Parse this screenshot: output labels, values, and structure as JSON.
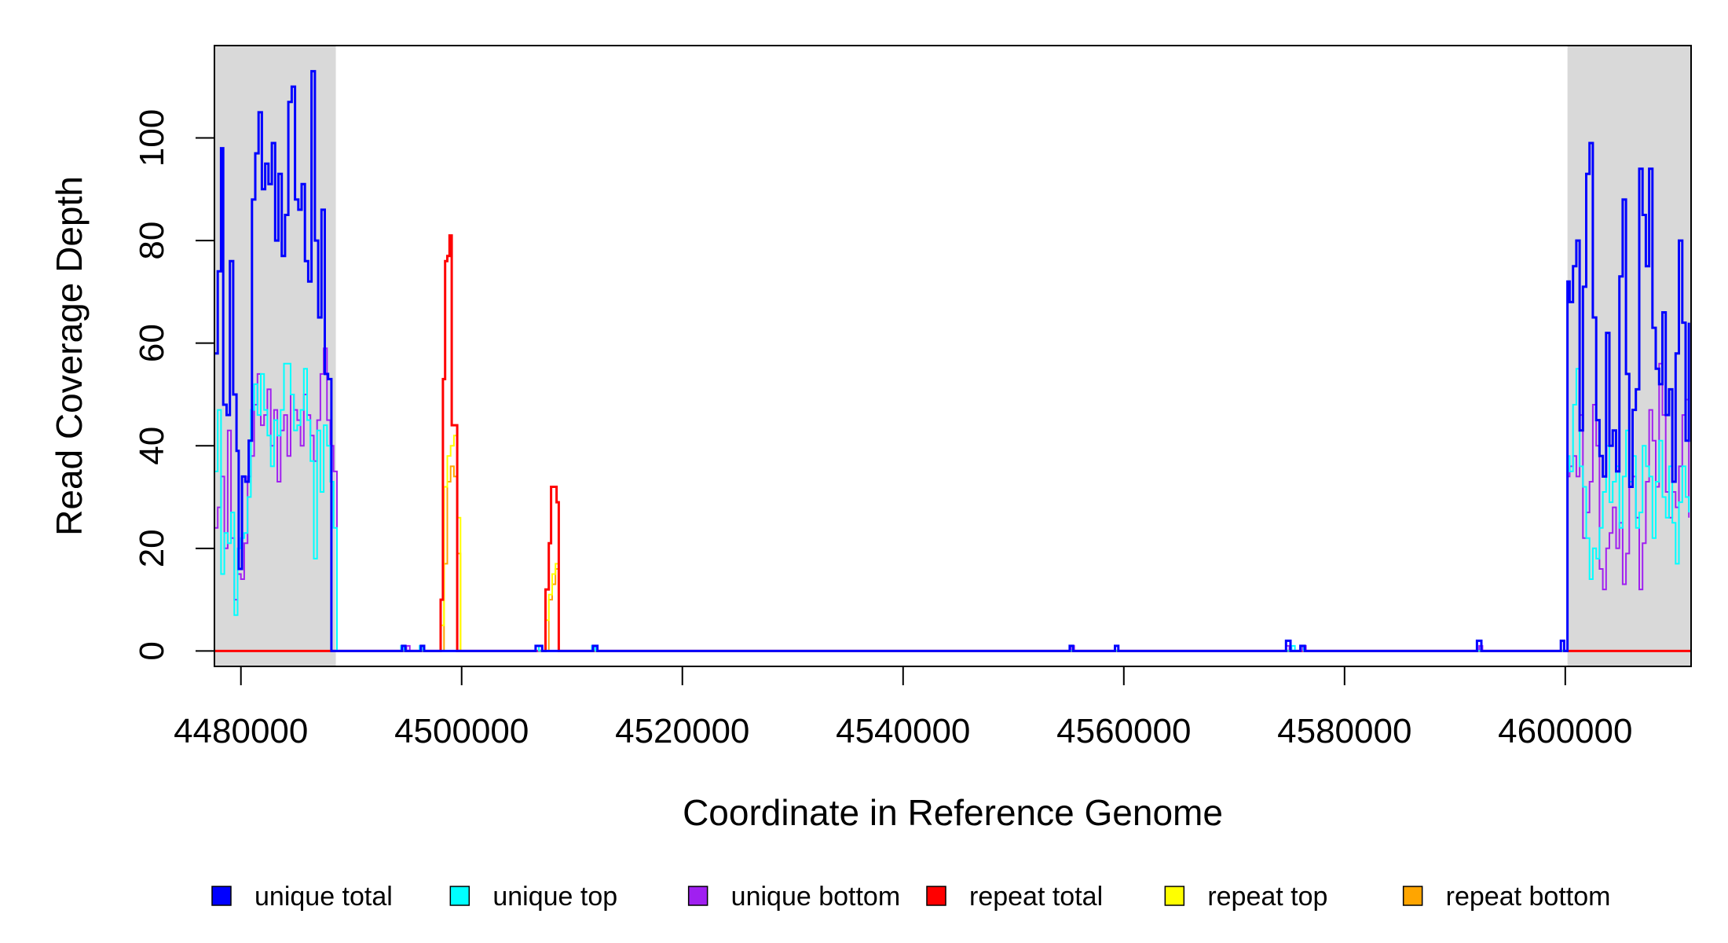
{
  "chart_data": {
    "type": "line",
    "step": true,
    "xlabel": "Coordinate in Reference Genome",
    "ylabel": "Read Coverage Depth",
    "xlim": [
      4477600,
      4611400
    ],
    "ylim": [
      -3,
      118
    ],
    "x_ticks": [
      4480000,
      4500000,
      4520000,
      4540000,
      4560000,
      4580000,
      4600000
    ],
    "x_tick_labels": [
      "4480000",
      "4500000",
      "4520000",
      "4540000",
      "4560000",
      "4580000",
      "4600000"
    ],
    "y_ticks": [
      0,
      20,
      40,
      60,
      80,
      100
    ],
    "y_tick_labels": [
      "0",
      "20",
      "40",
      "60",
      "80",
      "100"
    ],
    "shaded_regions": [
      {
        "from": 4477600,
        "to": 4488600,
        "color": "#d9d9d9"
      },
      {
        "from": 4600200,
        "to": 4611400,
        "color": "#d9d9d9"
      }
    ],
    "legend_position": "bottom",
    "series": [
      {
        "name": "repeat bottom",
        "color": "#ffa500",
        "width": 2,
        "x": [
          4477600,
          4488800,
          4498100,
          4498400,
          4498700,
          4499000,
          4499300,
          4499600,
          4499900,
          4507600,
          4507900,
          4508200,
          4508500,
          4508800,
          4611400
        ],
        "y": [
          0,
          0,
          0,
          17,
          33,
          36,
          34,
          19,
          0,
          0,
          10,
          13,
          16,
          0,
          0
        ]
      },
      {
        "name": "repeat top",
        "color": "#ffff00",
        "width": 2,
        "x": [
          4477600,
          4488800,
          4498100,
          4498400,
          4498700,
          4499000,
          4499300,
          4499600,
          4499900,
          4507600,
          4507900,
          4508200,
          4508500,
          4508800,
          4611400
        ],
        "y": [
          0,
          0,
          5,
          32,
          38,
          40,
          42,
          26,
          0,
          6,
          11,
          15,
          17,
          0,
          0
        ]
      },
      {
        "name": "repeat total",
        "color": "#ff0000",
        "width": 3,
        "x": [
          4477600,
          4488800,
          4498100,
          4498300,
          4498500,
          4498700,
          4498900,
          4499100,
          4499300,
          4499600,
          4507600,
          4507900,
          4508100,
          4508400,
          4508600,
          4508800,
          4611400
        ],
        "y": [
          0,
          0,
          10,
          53,
          76,
          77,
          81,
          44,
          44,
          0,
          12,
          21,
          32,
          32,
          29,
          0,
          0
        ]
      },
      {
        "name": "unique bottom",
        "color": "#a020f0",
        "width": 2,
        "x": [
          4477600,
          4477900,
          4478200,
          4478500,
          4478800,
          4479100,
          4479400,
          4479700,
          4480000,
          4480300,
          4480600,
          4480900,
          4481200,
          4481500,
          4481800,
          4482100,
          4482400,
          4482700,
          4483000,
          4483300,
          4483600,
          4483900,
          4484200,
          4484500,
          4484800,
          4485100,
          4485400,
          4485700,
          4486000,
          4486300,
          4486600,
          4486900,
          4487200,
          4487500,
          4487800,
          4488100,
          4488400,
          4488700,
          4488900,
          4495000,
          4495300,
          4500000,
          4507000,
          4507300,
          4511800,
          4512100,
          4520000,
          4555200,
          4555500,
          4559200,
          4559500,
          4574700,
          4575000,
          4576200,
          4576500,
          4592200,
          4592500,
          4600200,
          4600400,
          4600700,
          4601000,
          4601300,
          4601600,
          4601900,
          4602200,
          4602500,
          4602800,
          4603100,
          4603400,
          4603700,
          4604000,
          4604300,
          4604600,
          4604900,
          4605200,
          4605500,
          4605800,
          4606100,
          4606400,
          4606700,
          4607000,
          4607300,
          4607600,
          4607900,
          4608200,
          4608500,
          4608800,
          4609100,
          4609400,
          4609700,
          4610000,
          4610300,
          4610600,
          4610900,
          4611200
        ],
        "y": [
          24,
          28,
          34,
          20,
          43,
          22,
          10,
          15,
          14,
          21,
          34,
          38,
          48,
          54,
          44,
          46,
          51,
          40,
          47,
          33,
          43,
          46,
          38,
          50,
          47,
          45,
          40,
          50,
          46,
          42,
          37,
          45,
          54,
          59,
          45,
          40,
          35,
          0,
          0,
          1,
          0,
          0,
          1,
          0,
          1,
          0,
          0,
          1,
          0,
          1,
          0,
          1,
          0,
          1,
          0,
          1,
          0,
          34,
          36,
          38,
          34,
          46,
          22,
          27,
          33,
          48,
          40,
          16,
          12,
          20,
          23,
          28,
          20,
          25,
          13,
          19,
          32,
          34,
          26,
          12,
          21,
          33,
          47,
          41,
          32,
          56,
          46,
          31,
          26,
          31,
          28,
          36,
          46,
          49,
          26
        ],
        "x_note": "step series"
      },
      {
        "name": "unique top",
        "color": "#00ffff",
        "width": 2,
        "x": [
          4477600,
          4477900,
          4478200,
          4478500,
          4478800,
          4479100,
          4479400,
          4479700,
          4480000,
          4480300,
          4480600,
          4480900,
          4481200,
          4481500,
          4481800,
          4482100,
          4482400,
          4482700,
          4483000,
          4483300,
          4483600,
          4483900,
          4484200,
          4484500,
          4484800,
          4485100,
          4485400,
          4485700,
          4486000,
          4486300,
          4486600,
          4486900,
          4487200,
          4487500,
          4487800,
          4488100,
          4488400,
          4488700,
          4488900,
          4494500,
          4494800,
          4496200,
          4496500,
          4506700,
          4507000,
          4511800,
          4512100,
          4575200,
          4575500,
          4576000,
          4576300,
          4600200,
          4600400,
          4600700,
          4601000,
          4601300,
          4601600,
          4601900,
          4602200,
          4602500,
          4602800,
          4603100,
          4603400,
          4603700,
          4604000,
          4604300,
          4604600,
          4604900,
          4605200,
          4605500,
          4605800,
          4606100,
          4606400,
          4606700,
          4607000,
          4607300,
          4607600,
          4607900,
          4608200,
          4608500,
          4608800,
          4609100,
          4609400,
          4609700,
          4610000,
          4610300,
          4610600,
          4610900,
          4611200
        ],
        "y": [
          35,
          47,
          15,
          23,
          21,
          27,
          7,
          20,
          22,
          23,
          30,
          47,
          52,
          46,
          54,
          47,
          42,
          36,
          45,
          42,
          47,
          56,
          56,
          50,
          43,
          44,
          47,
          55,
          45,
          37,
          18,
          43,
          31,
          44,
          40,
          33,
          24,
          0,
          0,
          1,
          0,
          1,
          0,
          1,
          0,
          1,
          0,
          1,
          0,
          1,
          0,
          38,
          35,
          48,
          55,
          36,
          32,
          22,
          14,
          20,
          18,
          24,
          31,
          40,
          29,
          33,
          36,
          24,
          34,
          43,
          33,
          38,
          24,
          27,
          40,
          36,
          34,
          22,
          33,
          41,
          30,
          26,
          36,
          25,
          17,
          29,
          36,
          30,
          27
        ]
      },
      {
        "name": "unique total",
        "color": "#0000ff",
        "width": 3,
        "x": [
          4477600,
          4477900,
          4478200,
          4478400,
          4478700,
          4479000,
          4479300,
          4479600,
          4479800,
          4480100,
          4480400,
          4480700,
          4481000,
          4481300,
          4481600,
          4481900,
          4482200,
          4482500,
          4482800,
          4483100,
          4483400,
          4483700,
          4484000,
          4484300,
          4484600,
          4484900,
          4485200,
          4485500,
          4485800,
          4486100,
          4486400,
          4486700,
          4487000,
          4487300,
          4487600,
          4487900,
          4488200,
          4488500,
          4488800,
          4489000,
          4494600,
          4494900,
          4496300,
          4496600,
          4506700,
          4507300,
          4511900,
          4512300,
          4555100,
          4555400,
          4559200,
          4559500,
          4574700,
          4575100,
          4576000,
          4576400,
          4592000,
          4592400,
          4599600,
          4599900,
          4600200,
          4600400,
          4600700,
          4601000,
          4601300,
          4601600,
          4601900,
          4602200,
          4602500,
          4602800,
          4603100,
          4603400,
          4603700,
          4604000,
          4604300,
          4604600,
          4604900,
          4605200,
          4605500,
          4605800,
          4606100,
          4606400,
          4606700,
          4607000,
          4607300,
          4607600,
          4607900,
          4608200,
          4608500,
          4608800,
          4609100,
          4609400,
          4609700,
          4610000,
          4610300,
          4610600,
          4610900,
          4611200
        ],
        "y": [
          58,
          74,
          98,
          48,
          46,
          76,
          50,
          39,
          16,
          34,
          33,
          41,
          88,
          97,
          105,
          90,
          95,
          91,
          99,
          80,
          93,
          77,
          85,
          107,
          110,
          88,
          86,
          91,
          76,
          72,
          113,
          80,
          65,
          86,
          54,
          53,
          0,
          0,
          0,
          0,
          1,
          0,
          1,
          0,
          1,
          0,
          1,
          0,
          1,
          0,
          1,
          0,
          2,
          0,
          1,
          0,
          2,
          0,
          2,
          0,
          72,
          68,
          75,
          80,
          43,
          71,
          93,
          99,
          65,
          45,
          38,
          34,
          62,
          40,
          43,
          35,
          73,
          88,
          54,
          32,
          47,
          51,
          94,
          85,
          75,
          94,
          63,
          55,
          52,
          66,
          46,
          51,
          33,
          58,
          80,
          64,
          41,
          64
        ]
      }
    ],
    "legend": [
      {
        "label": "unique total",
        "color": "#0000ff"
      },
      {
        "label": "unique top",
        "color": "#00ffff"
      },
      {
        "label": "unique bottom",
        "color": "#a020f0"
      },
      {
        "label": "repeat total",
        "color": "#ff0000"
      },
      {
        "label": "repeat top",
        "color": "#ffff00"
      },
      {
        "label": "repeat bottom",
        "color": "#ffa500"
      }
    ]
  }
}
